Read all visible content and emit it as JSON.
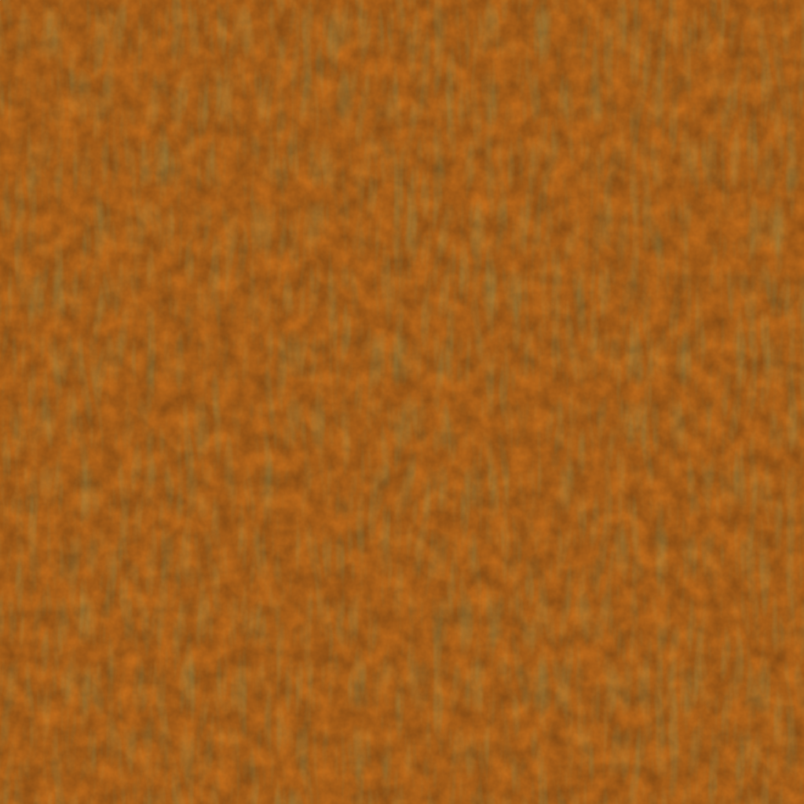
{
  "image": {
    "kind": "false-color satellite imagery",
    "colors": {
      "land_orange": "#c8701c",
      "land_peach": "#e8c8a0",
      "cloud_blue": "#5aa8e8",
      "ocean_blue": "#2aa0f0",
      "vegetation_green": "#3a6a30",
      "haze_pink": "#e0b0a0"
    }
  }
}
